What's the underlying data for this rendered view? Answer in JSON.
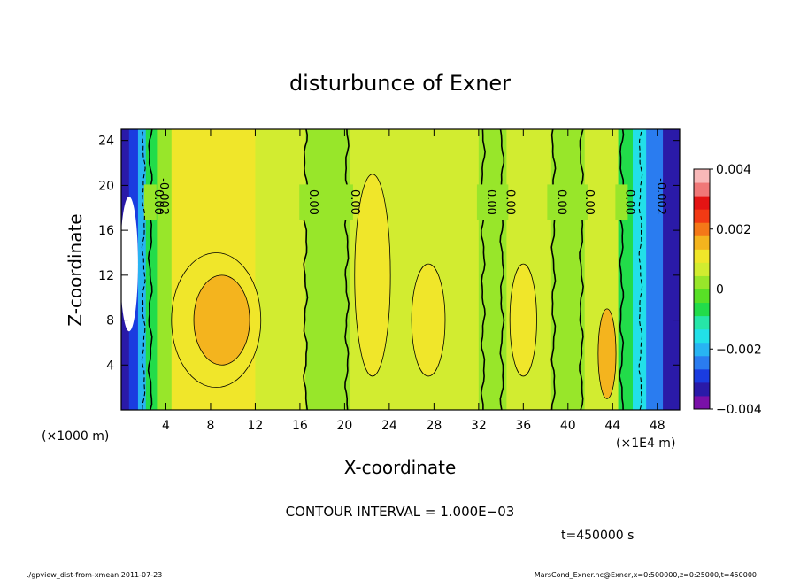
{
  "chart_data": {
    "type": "heatmap",
    "title": "disturbunce of Exner",
    "xlabel": "X-coordinate",
    "ylabel": "Z-coordinate",
    "x_unit_left": "(×1000 m)",
    "x_unit_right": "(×1E4 m)",
    "xlim": [
      0,
      50
    ],
    "ylim": [
      0,
      25
    ],
    "x_ticks": [
      4,
      8,
      12,
      16,
      20,
      24,
      28,
      32,
      36,
      40,
      44,
      48
    ],
    "y_ticks": [
      4,
      8,
      12,
      16,
      20,
      24
    ],
    "colorbar": {
      "min": -0.004,
      "max": 0.004,
      "ticks": [
        {
          "value": 0.004,
          "label": "0.004"
        },
        {
          "value": 0.002,
          "label": "0.002"
        },
        {
          "value": 0,
          "label": "0"
        },
        {
          "value": -0.002,
          "label": "−0.002"
        },
        {
          "value": -0.004,
          "label": "−0.004"
        }
      ],
      "colors": [
        "#7a10a8",
        "#2a1aa8",
        "#1a3ce0",
        "#2a7cf0",
        "#28b4f2",
        "#22e0e8",
        "#26e6a8",
        "#22dc4a",
        "#58e026",
        "#98e62a",
        "#d2ec30",
        "#f0e62a",
        "#f4b41e",
        "#f47818",
        "#f23a14",
        "#e41414",
        "#f07878",
        "#f8b8b8"
      ]
    },
    "zero_contours": [
      {
        "x": 2.6,
        "label": "0.00"
      },
      {
        "x": 16.5,
        "label": "0.00"
      },
      {
        "x": 20.2,
        "label": "0.00"
      },
      {
        "x": 32.4,
        "label": "0.00"
      },
      {
        "x": 34.1,
        "label": "0.00"
      },
      {
        "x": 38.7,
        "label": "0.00"
      },
      {
        "x": 41.2,
        "label": "0.00"
      },
      {
        "x": 44.8,
        "label": "0.00"
      }
    ],
    "negative_contours": [
      {
        "x": 2.0,
        "label": "-0.002"
      },
      {
        "x": 46.5,
        "label": "-0.002"
      }
    ],
    "columns": [
      {
        "x0": 0.0,
        "x1": 0.7,
        "v": -0.0035
      },
      {
        "x0": 0.7,
        "x1": 1.5,
        "v": -0.003
      },
      {
        "x0": 1.5,
        "x1": 2.2,
        "v": -0.002
      },
      {
        "x0": 2.2,
        "x1": 3.2,
        "v": -0.0008
      },
      {
        "x0": 3.2,
        "x1": 4.5,
        "v": 0.0003
      },
      {
        "x0": 4.5,
        "x1": 12.0,
        "v": 0.0009
      },
      {
        "x0": 12.0,
        "x1": 16.5,
        "v": 0.0006
      },
      {
        "x0": 16.5,
        "x1": 20.5,
        "v": 0.0004
      },
      {
        "x0": 20.5,
        "x1": 26.0,
        "v": 0.0008
      },
      {
        "x0": 26.0,
        "x1": 32.0,
        "v": 0.0006
      },
      {
        "x0": 32.0,
        "x1": 34.5,
        "v": 0.0002
      },
      {
        "x0": 34.5,
        "x1": 38.5,
        "v": 0.0005
      },
      {
        "x0": 38.5,
        "x1": 41.5,
        "v": 0.0002
      },
      {
        "x0": 41.5,
        "x1": 44.5,
        "v": 0.0005
      },
      {
        "x0": 44.5,
        "x1": 45.8,
        "v": -0.0006
      },
      {
        "x0": 45.8,
        "x1": 47.0,
        "v": -0.0016
      },
      {
        "x0": 47.0,
        "x1": 48.5,
        "v": -0.0026
      },
      {
        "x0": 48.5,
        "x1": 50.0,
        "v": -0.0032
      }
    ],
    "blobs": [
      {
        "cx": 8.5,
        "cy": 8,
        "rx": 4.0,
        "ry": 6,
        "v": 0.0013
      },
      {
        "cx": 9.0,
        "cy": 8,
        "rx": 2.5,
        "ry": 4,
        "v": 0.0016
      },
      {
        "cx": 22.5,
        "cy": 12,
        "rx": 1.6,
        "ry": 9,
        "v": 0.0012
      },
      {
        "cx": 27.5,
        "cy": 8,
        "rx": 1.5,
        "ry": 5,
        "v": 0.0011
      },
      {
        "cx": 36.0,
        "cy": 8,
        "rx": 1.2,
        "ry": 5,
        "v": 0.0009
      },
      {
        "cx": 43.5,
        "cy": 5,
        "rx": 0.8,
        "ry": 4,
        "v": 0.0016
      },
      {
        "cx": 0.7,
        "cy": 13,
        "rx": 0.8,
        "ry": 6,
        "v": -0.0045
      }
    ],
    "contour_interval": "CONTOUR INTERVAL = 1.000E−03",
    "time_label": "t=450000 s"
  },
  "footer": {
    "left": "./gpview_dist-from-xmean  2011-07-23",
    "right": "MarsCond_Exner.nc@Exner,x=0:500000,z=0:25000,t=450000"
  }
}
